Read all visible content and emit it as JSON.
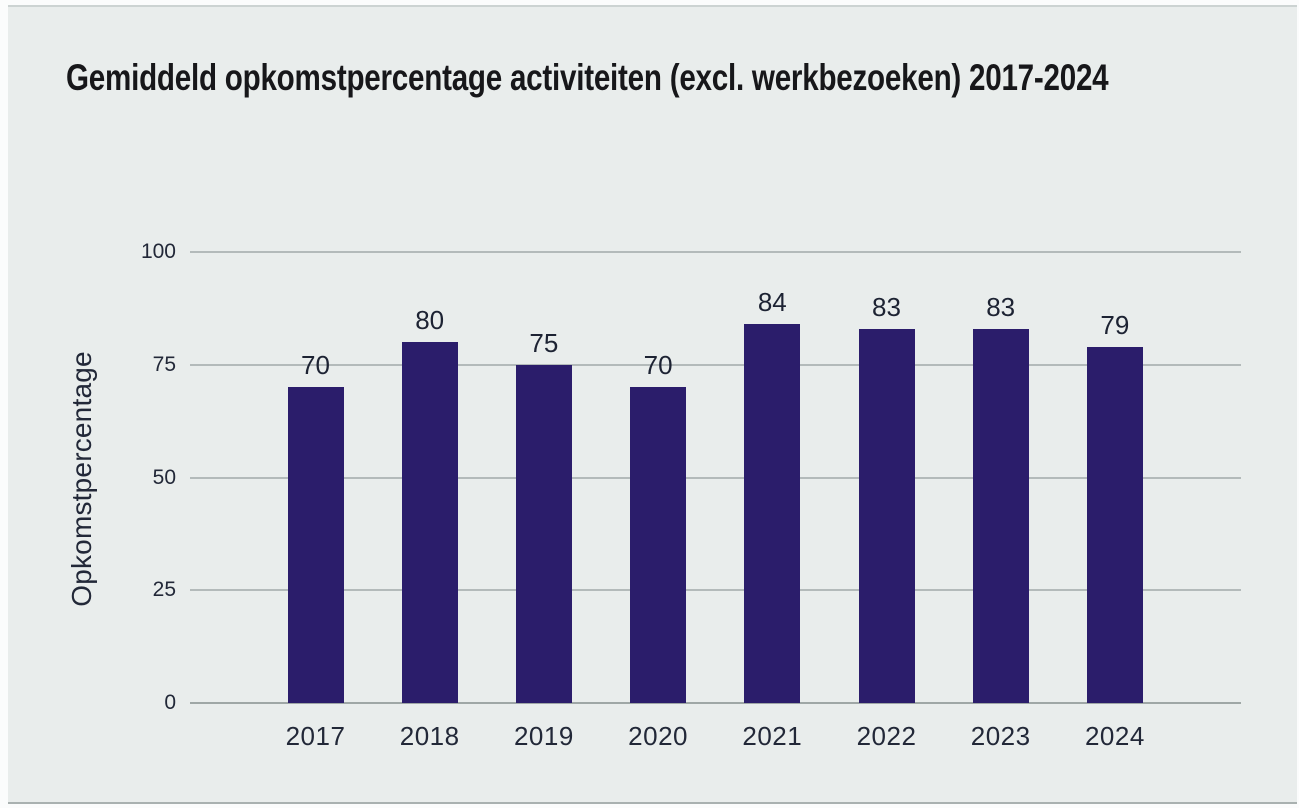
{
  "page": {
    "background_color": "#e9edec",
    "top_edge_line_color": "#ccd3d2",
    "bottom_edge_line_color": "#a9b1b0"
  },
  "chart_data": {
    "type": "bar",
    "title": "Gemiddeld opkomstpercentage activiteiten (excl. werkbezoeken) 2017-2024",
    "ylabel": "Opkomstpercentage",
    "xlabel": "",
    "categories": [
      "2017",
      "2018",
      "2019",
      "2020",
      "2021",
      "2022",
      "2023",
      "2024"
    ],
    "values": [
      70,
      80,
      75,
      70,
      84,
      83,
      83,
      79
    ],
    "value_labels": [
      "70",
      "80",
      "75",
      "70",
      "84",
      "83",
      "83",
      "79"
    ],
    "ylim": [
      0,
      100
    ],
    "yticks": [
      0,
      25,
      50,
      75,
      100
    ],
    "ytick_labels": [
      "0",
      "25",
      "50",
      "75",
      "100"
    ],
    "grid": true,
    "legend": false,
    "bar_color": "#2b1d6b",
    "gridline_color": "#b3baba",
    "baseline_color": "#9fa7a6",
    "text_color": "#222838",
    "title_color": "#17171a"
  }
}
